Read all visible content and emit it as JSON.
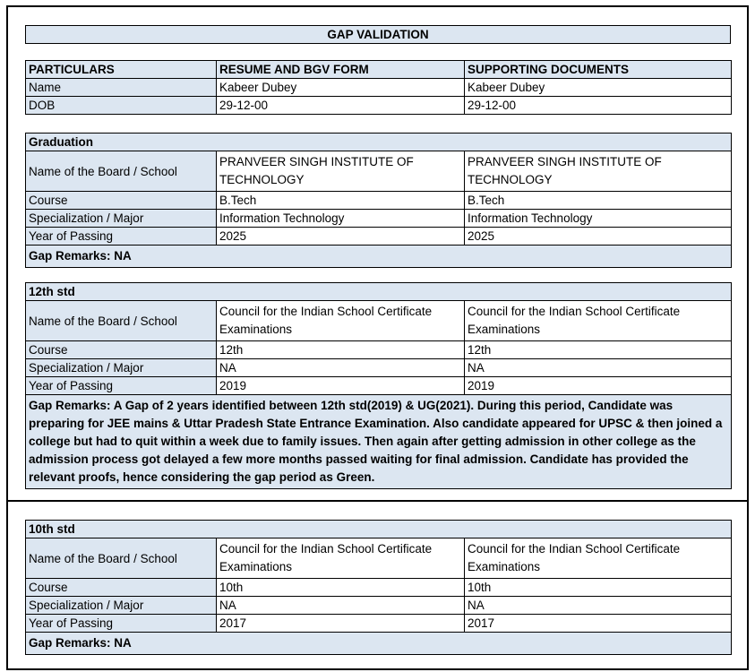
{
  "title": "GAP VALIDATION",
  "header": {
    "cols": [
      "PARTICULARS",
      "RESUME AND BGV FORM",
      "SUPPORTING DOCUMENTS"
    ],
    "rows": [
      [
        "Name",
        "Kabeer Dubey",
        "Kabeer Dubey"
      ],
      [
        "DOB",
        "29-12-00",
        "29-12-00"
      ]
    ]
  },
  "labels": {
    "board": "Name of the Board / School",
    "course": "Course",
    "spec": "Specialization / Major",
    "year": "Year of Passing"
  },
  "graduation": {
    "heading": "Graduation",
    "board": "PRANVEER SINGH INSTITUTE OF TECHNOLOGY",
    "board2": "PRANVEER SINGH INSTITUTE OF TECHNOLOGY",
    "course": "B.Tech",
    "spec": "Information Technology",
    "year": "2025",
    "remarks": "Gap Remarks: NA"
  },
  "std12": {
    "heading": "12th std",
    "board": "Council for the Indian School Certificate Examinations",
    "course": "12th",
    "spec": "NA",
    "year": "2019",
    "remarks": "Gap Remarks: A Gap of 2 years identified between 12th std(2019) & UG(2021). During this period, Candidate was preparing for JEE mains & Uttar Pradesh State Entrance Examination. Also candidate appeared for UPSC & then joined a college but had to quit within a week due to family issues. Then again after getting admission in other college as the admission process got delayed a few more months passed waiting for final admission. Candidate has provided the relevant proofs, hence considering the gap period as Green."
  },
  "std10": {
    "heading": "10th std",
    "board": "Council for the Indian School Certificate Examinations",
    "course": "10th",
    "spec": "NA",
    "year": "2017",
    "remarks": "Gap Remarks: NA"
  },
  "colors": {
    "label_bg": "#dce6f1"
  }
}
